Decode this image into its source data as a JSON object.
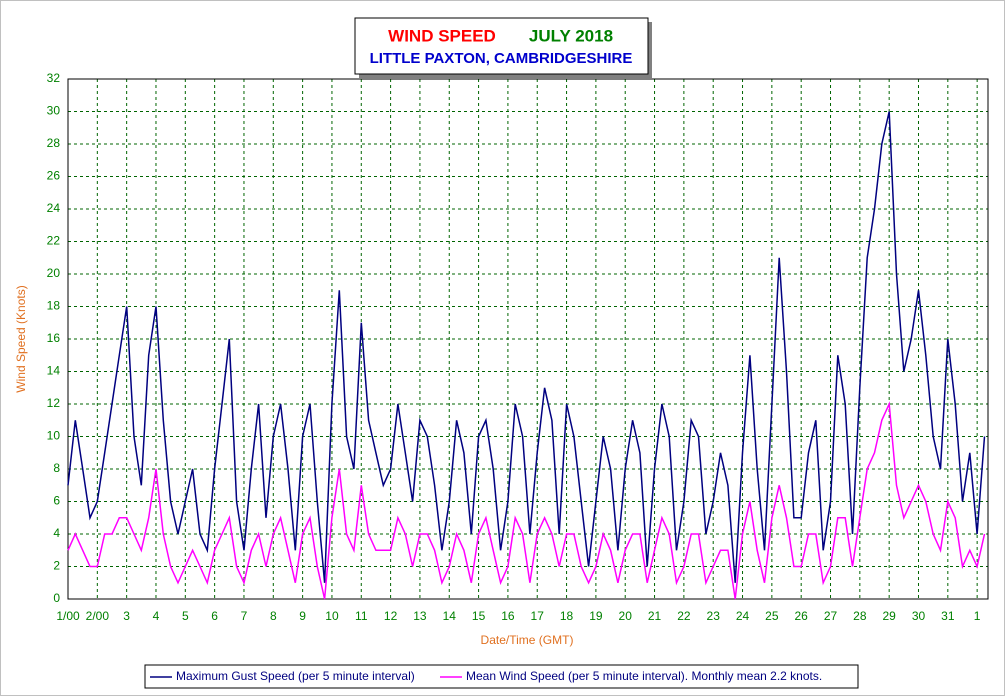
{
  "chart_data": {
    "type": "line",
    "title": "WIND SPEED",
    "title_month": "JULY 2018",
    "subtitle": "LITTLE PAXTON, CAMBRIDGESHIRE",
    "x_label": "Date/Time (GMT)",
    "y_label": "Wind Speed (Knots)",
    "x": [
      1,
      1.25,
      1.5,
      1.75,
      2,
      2.25,
      2.5,
      2.75,
      3,
      3.25,
      3.5,
      3.75,
      4,
      4.25,
      4.5,
      4.75,
      5,
      5.25,
      5.5,
      5.75,
      6,
      6.25,
      6.5,
      6.75,
      7,
      7.25,
      7.5,
      7.75,
      8,
      8.25,
      8.5,
      8.75,
      9,
      9.25,
      9.5,
      9.75,
      10,
      10.25,
      10.5,
      10.75,
      11,
      11.25,
      11.5,
      11.75,
      12,
      12.25,
      12.5,
      12.75,
      13,
      13.25,
      13.5,
      13.75,
      14,
      14.25,
      14.5,
      14.75,
      15,
      15.25,
      15.5,
      15.75,
      16,
      16.25,
      16.5,
      16.75,
      17,
      17.25,
      17.5,
      17.75,
      18,
      18.25,
      18.5,
      18.75,
      19,
      19.25,
      19.5,
      19.75,
      20,
      20.25,
      20.5,
      20.75,
      21,
      21.25,
      21.5,
      21.75,
      22,
      22.25,
      22.5,
      22.75,
      23,
      23.25,
      23.5,
      23.75,
      24,
      24.25,
      24.5,
      24.75,
      25,
      25.25,
      25.5,
      25.75,
      26,
      26.25,
      26.5,
      26.75,
      27,
      27.25,
      27.5,
      27.75,
      28,
      28.25,
      28.5,
      28.75,
      29,
      29.25,
      29.5,
      29.75,
      30,
      30.25,
      30.5,
      30.75,
      31,
      31.25,
      31.5,
      31.75,
      32,
      32.25
    ],
    "series": [
      {
        "name": "Maximum Gust Speed (per 5 minute interval)",
        "color": "#000080",
        "values": [
          7,
          11,
          8,
          5,
          6,
          9,
          12,
          15,
          18,
          10,
          7,
          15,
          18,
          11,
          6,
          4,
          6,
          8,
          4,
          3,
          8,
          12,
          16,
          6,
          3,
          8,
          12,
          5,
          10,
          12,
          8,
          3,
          10,
          12,
          6,
          1,
          12,
          19,
          10,
          8,
          17,
          11,
          9,
          7,
          8,
          12,
          9,
          6,
          11,
          10,
          7,
          3,
          6,
          11,
          9,
          4,
          10,
          11,
          8,
          3,
          6,
          12,
          10,
          4,
          9,
          13,
          11,
          4,
          12,
          10,
          6,
          2,
          6,
          10,
          8,
          3,
          8,
          11,
          9,
          2,
          8,
          12,
          10,
          3,
          6,
          11,
          10,
          4,
          6,
          9,
          7,
          1,
          9,
          15,
          8,
          3,
          12,
          21,
          14,
          5,
          5,
          9,
          11,
          3,
          6,
          15,
          12,
          4,
          13,
          21,
          24,
          28,
          30,
          20,
          14,
          16,
          19,
          15,
          10,
          8,
          16,
          12,
          6,
          9,
          4,
          10
        ]
      },
      {
        "name": "Mean Wind Speed (per 5 minute interval). Monthly mean 2.2 knots.",
        "color": "#ff00ff",
        "values": [
          3,
          4,
          3,
          2,
          2,
          4,
          4,
          5,
          5,
          4,
          3,
          5,
          8,
          4,
          2,
          1,
          2,
          3,
          2,
          1,
          3,
          4,
          5,
          2,
          1,
          3,
          4,
          2,
          4,
          5,
          3,
          1,
          4,
          5,
          2,
          0,
          5,
          8,
          4,
          3,
          7,
          4,
          3,
          3,
          3,
          5,
          4,
          2,
          4,
          4,
          3,
          1,
          2,
          4,
          3,
          1,
          4,
          5,
          3,
          1,
          2,
          5,
          4,
          1,
          4,
          5,
          4,
          2,
          4,
          4,
          2,
          1,
          2,
          4,
          3,
          1,
          3,
          4,
          4,
          1,
          3,
          5,
          4,
          1,
          2,
          4,
          4,
          1,
          2,
          3,
          3,
          0,
          4,
          6,
          3,
          1,
          5,
          7,
          5,
          2,
          2,
          4,
          4,
          1,
          2,
          5,
          5,
          2,
          5,
          8,
          9,
          11,
          12,
          7,
          5,
          6,
          7,
          6,
          4,
          3,
          6,
          5,
          2,
          3,
          2,
          4
        ]
      }
    ],
    "xlim": [
      1,
      32.37
    ],
    "ylim": [
      0,
      32
    ],
    "xticks": [
      {
        "value": 1,
        "label": "1/00"
      },
      {
        "value": 2,
        "label": "2/00"
      },
      3,
      4,
      5,
      6,
      7,
      8,
      9,
      10,
      11,
      12,
      13,
      14,
      15,
      16,
      17,
      18,
      19,
      20,
      21,
      22,
      23,
      24,
      25,
      26,
      27,
      28,
      29,
      30,
      31,
      {
        "value": 32,
        "label": "1"
      }
    ],
    "yticks": [
      0,
      2,
      4,
      6,
      8,
      10,
      12,
      14,
      16,
      18,
      20,
      22,
      24,
      26,
      28,
      30,
      32
    ],
    "grid": true
  }
}
